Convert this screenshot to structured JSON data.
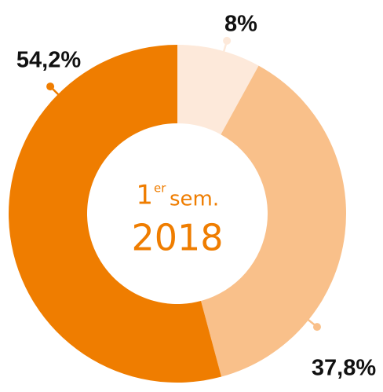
{
  "chart_data": {
    "type": "donut",
    "values": [
      8,
      37.8,
      54.2
    ],
    "value_labels": [
      "8%",
      "37,8%",
      "54,2%"
    ],
    "colors": [
      "#fde9da",
      "#f9c08a",
      "#ef7d00"
    ],
    "center_text": {
      "ordinal": "1",
      "ordinal_suffix": "er",
      "period": "sem.",
      "year": "2018"
    }
  }
}
